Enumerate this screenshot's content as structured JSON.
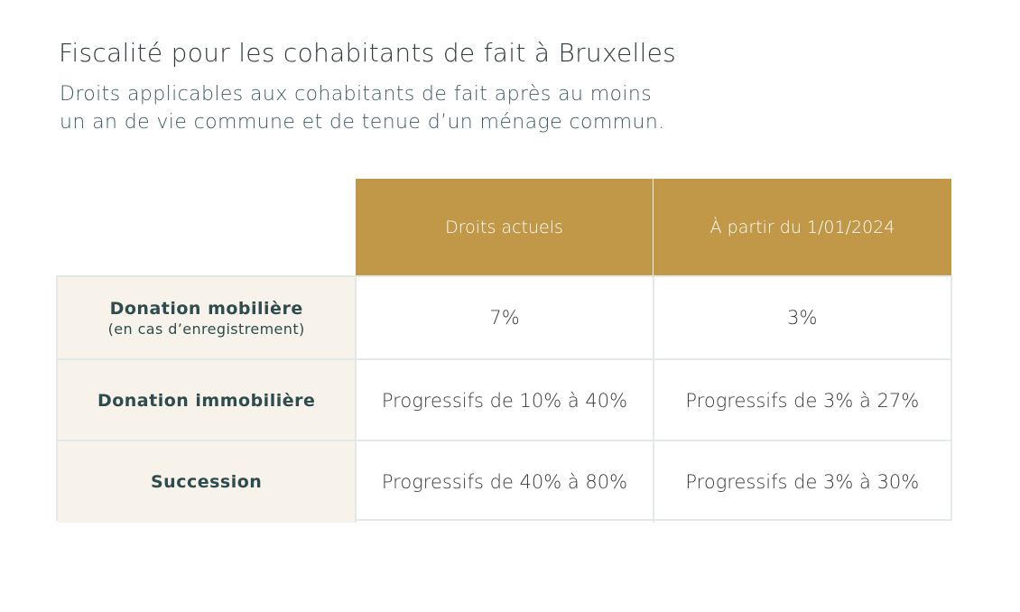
{
  "title": "Fiscalité pour les cohabitants de fait à Bruxelles",
  "subtitle_lines": [
    "Droits applicables aux cohabitants de fait après au moins",
    "un an de vie commune et de tenue d’un ménage commun."
  ],
  "table": {
    "columns": [
      "Droits actuels",
      "À partir du 1/01/2024"
    ],
    "rows": [
      {
        "label": "Donation mobilière",
        "sublabel": "(en cas d’enregistrement)",
        "values": [
          "7%",
          "3%"
        ]
      },
      {
        "label": "Donation immobilière",
        "values": [
          "Progressifs de 10% à 40%",
          "Progressifs de 3% à 27%"
        ]
      },
      {
        "label": "Succession",
        "values": [
          "Progressifs de 40% à 80%",
          "Progressifs de 3% à 30%"
        ]
      }
    ]
  },
  "colors": {
    "header_gold": "#c09848",
    "label_bg": "#f7f3ea",
    "border": "#e3e9e8",
    "title_text": "#2f3a3d",
    "label_text": "#2e4b4e"
  }
}
